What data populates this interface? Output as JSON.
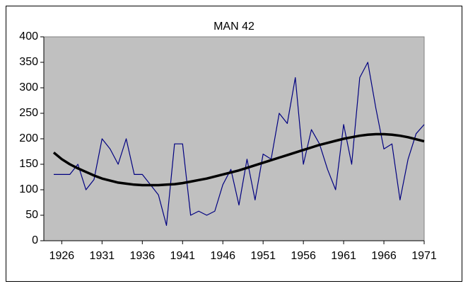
{
  "chart_data": {
    "type": "line",
    "title": "MAN 42",
    "categories": [
      null,
      "1926",
      null,
      null,
      null,
      null,
      "1931",
      null,
      null,
      null,
      null,
      "1936",
      null,
      null,
      null,
      null,
      "1941",
      null,
      null,
      null,
      null,
      "1946",
      null,
      null,
      null,
      null,
      "1951",
      null,
      null,
      null,
      null,
      "1956",
      null,
      null,
      null,
      null,
      "1961",
      null,
      null,
      null,
      null,
      "1966",
      null,
      null,
      null,
      null,
      "1971"
    ],
    "series": [
      {
        "color": "#000080",
        "width": 1.2,
        "values": [
          130,
          130,
          130,
          150,
          100,
          120,
          200,
          180,
          150,
          200,
          130,
          130,
          110,
          90,
          30,
          190,
          190,
          50,
          58,
          50,
          58,
          110,
          140,
          70,
          160,
          80,
          170,
          160,
          250,
          230,
          320,
          150,
          218,
          190,
          140,
          100,
          228,
          150,
          320,
          350,
          260,
          180,
          190,
          80,
          160,
          210,
          228
        ]
      },
      {
        "color": "#000000",
        "width": 3.5,
        "values": [
          173,
          160,
          150,
          142,
          135,
          128,
          122,
          118,
          114,
          112,
          110,
          109,
          109,
          109,
          110,
          111,
          113,
          116,
          119,
          122,
          126,
          130,
          134,
          138,
          143,
          148,
          153,
          158,
          163,
          168,
          173,
          178,
          183,
          188,
          192,
          196,
          200,
          203,
          206,
          208,
          209,
          209,
          208,
          206,
          203,
          199,
          195
        ]
      }
    ],
    "ylim": [
      0,
      400
    ],
    "yticks": [
      0,
      50,
      100,
      150,
      200,
      250,
      300,
      350,
      400
    ]
  }
}
